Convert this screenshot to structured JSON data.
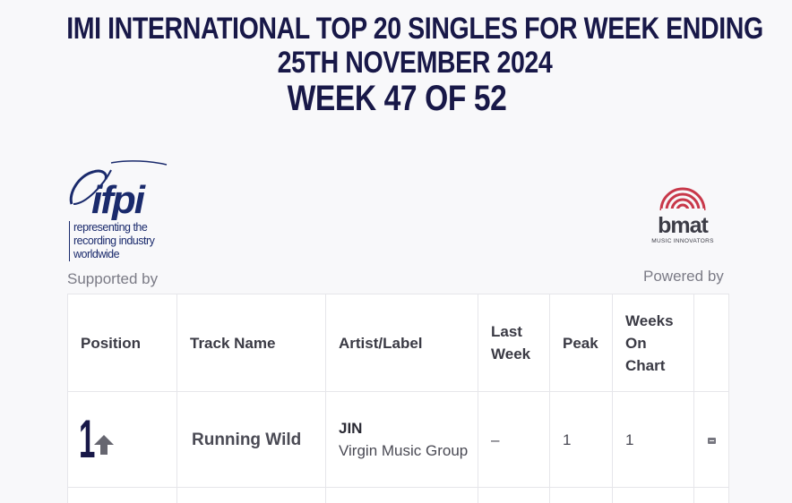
{
  "title": {
    "line1": "IMI International Top 20 Singles for Week Ending",
    "line2": "25th November 2024",
    "line3": "Week 47 of 52"
  },
  "logos": {
    "ifpi": {
      "wordmark": "ifpi",
      "tagline": [
        "representing the",
        "recording industry",
        "worldwide"
      ],
      "caption": "Supported by",
      "color": "#1a2a6c"
    },
    "bmat": {
      "wordmark": "bmat",
      "tagline": "MUSIC INNOVATORS",
      "caption": "Powered by",
      "accent": "#c8384a"
    }
  },
  "table": {
    "headers": {
      "position": "Position",
      "track": "Track Name",
      "artist": "Artist/Label",
      "last_week_1": "Last",
      "last_week_2": "Week",
      "peak": "Peak",
      "weeks_1": "Weeks",
      "weeks_2": "On",
      "weeks_3": "Chart"
    },
    "rows": [
      {
        "position": "1",
        "movement": "up-arrow-icon",
        "track": "Running Wild",
        "artist": "JIN",
        "label": "Virgin Music Group",
        "last_week": "–",
        "peak": "1",
        "weeks": "1",
        "media": "media-icon"
      }
    ]
  },
  "colors": {
    "title": "#181848",
    "caption": "#7b7b86",
    "border": "#e6e6ea"
  }
}
